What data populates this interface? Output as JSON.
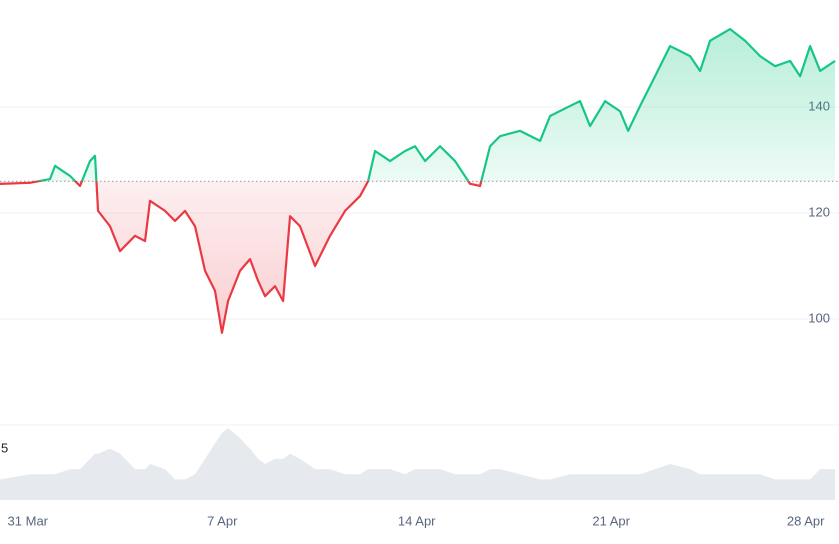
{
  "chart_data": {
    "type": "line",
    "x": [
      -1.0,
      0.08,
      0.8,
      0.98,
      1.52,
      1.88,
      2.24,
      2.42,
      2.53,
      2.96,
      3.32,
      3.86,
      4.22,
      4.4,
      4.94,
      5.3,
      5.66,
      6.02,
      6.38,
      6.74,
      6.99,
      7.21,
      7.64,
      8.0,
      8.29,
      8.54,
      8.9,
      9.19,
      9.44,
      9.8,
      10.34,
      10.88,
      11.42,
      11.96,
      12.25,
      12.5,
      13.04,
      13.58,
      13.94,
      14.3,
      14.84,
      15.38,
      15.92,
      16.28,
      16.64,
      17.0,
      17.72,
      18.44,
      18.8,
      19.52,
      19.88,
      20.24,
      20.78,
      21.32,
      21.61,
      22.04,
      22.58,
      23.12,
      23.84,
      24.2,
      24.56,
      25.28,
      25.82,
      26.36,
      26.9,
      27.44,
      27.8,
      28.16,
      28.52,
      29.06
    ],
    "values": [
      125.5,
      125.7,
      126.4,
      128.9,
      127.0,
      125.1,
      129.8,
      130.8,
      120.4,
      117.5,
      112.8,
      115.7,
      114.7,
      122.3,
      120.4,
      118.5,
      120.4,
      117.5,
      109.1,
      105.3,
      97.4,
      103.4,
      109.1,
      111.3,
      107.2,
      104.3,
      106.2,
      103.4,
      119.4,
      117.5,
      110.0,
      115.7,
      120.4,
      123.2,
      126.0,
      131.7,
      129.8,
      131.7,
      132.6,
      129.8,
      132.6,
      129.8,
      125.5,
      125.1,
      132.6,
      134.5,
      135.5,
      133.6,
      138.3,
      140.2,
      141.1,
      136.4,
      141.1,
      139.2,
      135.5,
      140.2,
      145.8,
      151.5,
      149.6,
      146.8,
      152.5,
      154.7,
      152.5,
      149.6,
      147.7,
      148.7,
      145.8,
      151.5,
      146.8,
      148.7
    ],
    "volume": [
      2,
      2.5,
      2.5,
      2.5,
      3,
      3,
      4,
      4.5,
      4.5,
      5,
      4.5,
      3,
      3,
      3.5,
      3,
      2,
      2,
      2.5,
      4,
      5.5,
      6.5,
      7,
      6,
      5,
      4,
      3.5,
      4,
      4,
      4.5,
      4,
      3,
      3,
      2.5,
      2.5,
      3,
      3,
      3,
      2.5,
      3,
      3,
      3,
      2.5,
      2.5,
      2.5,
      3,
      3,
      2.5,
      2,
      2,
      2.5,
      2.5,
      2.5,
      2.5,
      2.5,
      2.5,
      2.5,
      3,
      3.5,
      3,
      2.5,
      2.5,
      2.5,
      2.5,
      2.5,
      2,
      2,
      2,
      2,
      3,
      3
    ],
    "volume_label": "5",
    "baseline": 126,
    "up_color": "#16c784",
    "down_color": "#ea3943",
    "volume_color": "#e6e9ee",
    "xlim": [
      -1,
      29.2
    ],
    "ylim": [
      80,
      160
    ],
    "xticks": [
      {
        "value": 0,
        "label": "31 Mar"
      },
      {
        "value": 7,
        "label": "7 Apr"
      },
      {
        "value": 14,
        "label": "14 Apr"
      },
      {
        "value": 21,
        "label": "21 Apr"
      },
      {
        "value": 28,
        "label": "28 Apr"
      }
    ],
    "yticks": [
      100,
      120,
      140
    ],
    "grid": true
  }
}
